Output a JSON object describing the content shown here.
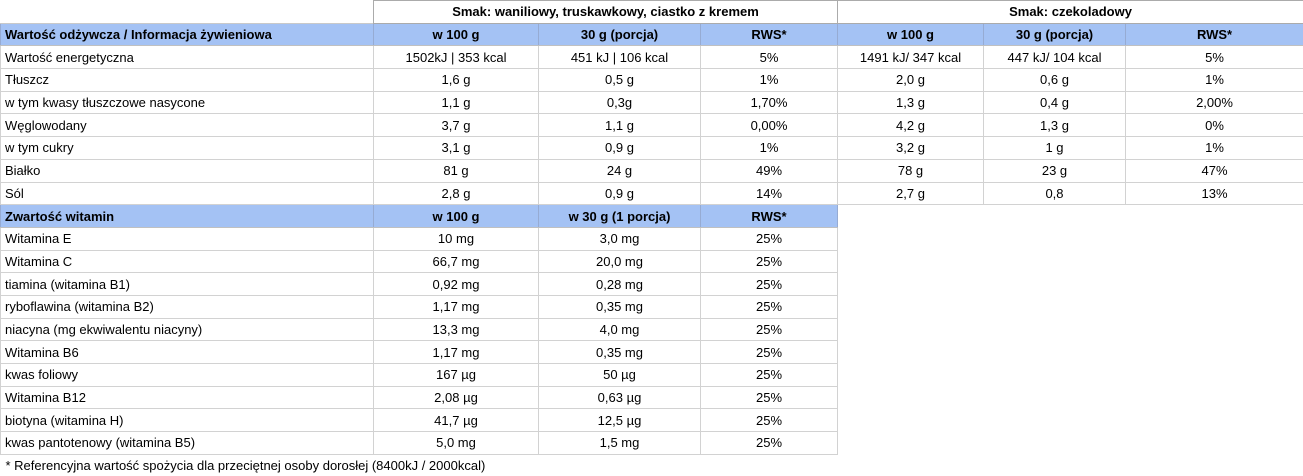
{
  "table": {
    "flavor_groups": [
      {
        "label": "Smak: waniliowy, truskawkowy, ciastko z kremem"
      },
      {
        "label": "Smak: czekoladowy"
      }
    ],
    "nutrition": {
      "section_title": "Wartość odżywcza / Informacja żywieniowa",
      "col_headers": [
        "w 100 g",
        "30 g (porcja)",
        "RWS*"
      ],
      "rows": [
        {
          "label": "Wartość energetyczna",
          "group1": [
            "1502kJ | 353 kcal",
            "451 kJ | 106 kcal",
            "5%"
          ],
          "group2": [
            "1491 kJ/ 347 kcal",
            "447 kJ/ 104 kcal",
            "5%"
          ]
        },
        {
          "label": "Tłuszcz",
          "group1": [
            "1,6 g",
            "0,5 g",
            "1%"
          ],
          "group2": [
            "2,0 g",
            "0,6 g",
            "1%"
          ]
        },
        {
          "label": "w tym kwasy tłuszczowe nasycone",
          "group1": [
            "1,1 g",
            "0,3g",
            "1,70%"
          ],
          "group2": [
            "1,3 g",
            "0,4 g",
            "2,00%"
          ]
        },
        {
          "label": "Węglowodany",
          "group1": [
            "3,7 g",
            "1,1 g",
            "0,00%"
          ],
          "group2": [
            "4,2 g",
            "1,3 g",
            "0%"
          ]
        },
        {
          "label": "w tym cukry",
          "group1": [
            "3,1 g",
            "0,9 g",
            "1%"
          ],
          "group2": [
            "3,2 g",
            "1 g",
            "1%"
          ]
        },
        {
          "label": "Białko",
          "group1": [
            "81 g",
            "24 g",
            "49%"
          ],
          "group2": [
            "78 g",
            "23 g",
            "47%"
          ]
        },
        {
          "label": "Sól",
          "group1": [
            "2,8 g",
            "0,9 g",
            "14%"
          ],
          "group2": [
            "2,7 g",
            "0,8",
            "13%"
          ]
        }
      ]
    },
    "vitamins": {
      "section_title": "Zwartość witamin",
      "col_headers": [
        "w 100 g",
        "w 30 g (1 porcja)",
        "RWS*"
      ],
      "rows": [
        {
          "label": "Witamina E",
          "values": [
            "10 mg",
            "3,0 mg",
            "25%"
          ]
        },
        {
          "label": "Witamina C",
          "values": [
            "66,7 mg",
            "20,0 mg",
            "25%"
          ]
        },
        {
          "label": "tiamina (witamina B1)",
          "values": [
            "0,92 mg",
            "0,28 mg",
            "25%"
          ]
        },
        {
          "label": "ryboflawina (witamina B2)",
          "values": [
            "1,17 mg",
            "0,35 mg",
            "25%"
          ]
        },
        {
          "label": "niacyna (mg ekwiwalentu niacyny)",
          "values": [
            "13,3 mg",
            "4,0 mg",
            "25%"
          ]
        },
        {
          "label": "Witamina B6",
          "values": [
            "1,17 mg",
            "0,35 mg",
            "25%"
          ]
        },
        {
          "label": "kwas foliowy",
          "values": [
            "167 µg",
            "50 µg",
            "25%"
          ]
        },
        {
          "label": "Witamina B12",
          "values": [
            "2,08 µg",
            "0,63 µg",
            "25%"
          ]
        },
        {
          "label": "biotyna (witamina H)",
          "values": [
            "41,7 µg",
            "12,5 µg",
            "25%"
          ]
        },
        {
          "label": "kwas pantotenowy (witamina B5)",
          "values": [
            "5,0 mg",
            "1,5 mg",
            "25%"
          ]
        }
      ]
    },
    "footnote": "* Referencyjna wartość spożycia dla przeciętnej osoby dorosłej (8400kJ / 2000kcal)",
    "colors": {
      "header_fill": "#a4c2f4",
      "gridline": "#d2d2d2",
      "outer_border": "#ababab",
      "text": "#000000"
    }
  }
}
